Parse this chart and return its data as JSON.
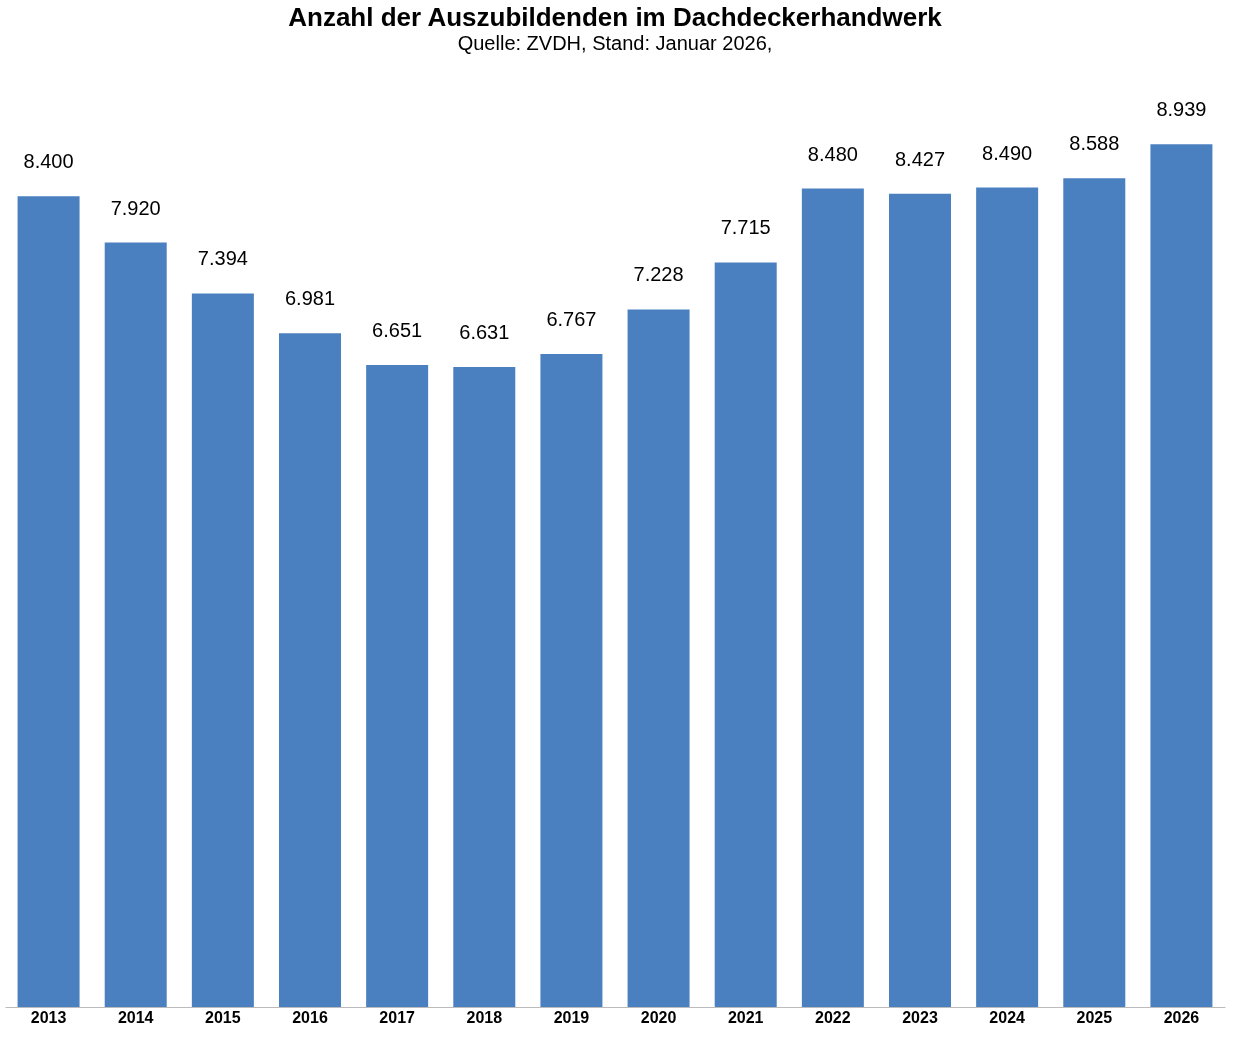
{
  "chart_data": {
    "type": "bar",
    "title": "Anzahl der Auszubildenden im Dachdeckerhandwerk",
    "subtitle": "Quelle: ZVDH, Stand: Januar 2026,",
    "categories": [
      "2013",
      "2014",
      "2015",
      "2016",
      "2017",
      "2018",
      "2019",
      "2020",
      "2021",
      "2022",
      "2023",
      "2024",
      "2025",
      "2026"
    ],
    "values": [
      8400,
      7920,
      7394,
      6981,
      6651,
      6631,
      6767,
      7228,
      7715,
      8480,
      8427,
      8490,
      8588,
      8939
    ],
    "value_labels": [
      "8.400",
      "7.920",
      "7.394",
      "6.981",
      "6.651",
      "6.631",
      "6.767",
      "7.228",
      "7.715",
      "8.480",
      "8.427",
      "8.490",
      "8.588",
      "8.939"
    ],
    "color": "#4a80c0"
  }
}
